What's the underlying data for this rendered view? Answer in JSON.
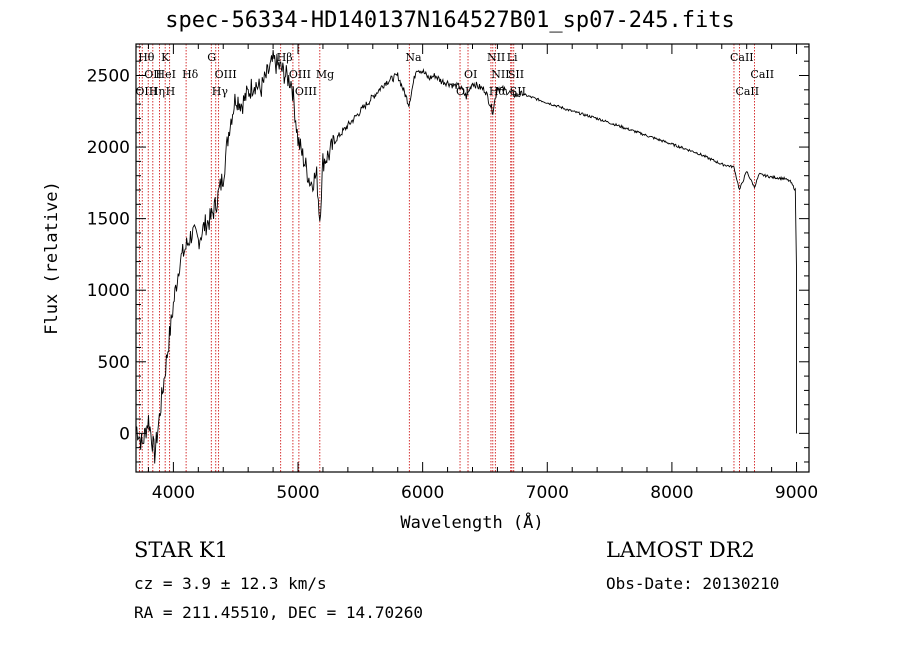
{
  "title": "spec-56334-HD140137N164527B01_sp07-245.fits",
  "info": {
    "class_label": "STAR    K1",
    "cz": "cz = 3.9 ± 12.3 km/s",
    "radec": "RA = 211.45510, DEC =  14.70260",
    "survey": "LAMOST DR2",
    "obs_date": "Obs-Date: 20130210"
  },
  "colors": {
    "line_marker": "#cc0000",
    "spectrum": "#000000",
    "axes": "#000000"
  },
  "chart_data": {
    "type": "line",
    "xlabel": "Wavelength (Å)",
    "ylabel": "Flux (relative)",
    "xlim": [
      3700,
      9100
    ],
    "ylim": [
      -270,
      2720
    ],
    "xticks": [
      4000,
      5000,
      6000,
      7000,
      8000,
      9000
    ],
    "yticks": [
      0,
      500,
      1000,
      1500,
      2000,
      2500
    ],
    "grid": false,
    "series": [
      {
        "values_x": [
          3700,
          3750,
          3800,
          3850,
          3900,
          3950,
          4000,
          4050,
          4100,
          4150,
          4200,
          4250,
          4300,
          4340,
          4400,
          4450,
          4500,
          4550,
          4600,
          4650,
          4700,
          4750,
          4800,
          4861,
          4900,
          4950,
          5000,
          5050,
          5100,
          5150,
          5175,
          5200,
          5250,
          5300,
          5400,
          5500,
          5600,
          5700,
          5800,
          5890,
          5950,
          6000,
          6050,
          6100,
          6150,
          6200,
          6250,
          6300,
          6350,
          6400,
          6450,
          6500,
          6563,
          6600,
          6650,
          6700,
          6750,
          6800,
          7000,
          7200,
          7400,
          7600,
          7800,
          8000,
          8200,
          8400,
          8498,
          8542,
          8600,
          8662,
          8700,
          8800,
          8900,
          8950,
          8990,
          9000
        ],
        "values_y": [
          50,
          -80,
          100,
          -150,
          200,
          550,
          900,
          1200,
          1300,
          1400,
          1350,
          1450,
          1500,
          1600,
          1800,
          2150,
          2350,
          2300,
          2380,
          2450,
          2400,
          2500,
          2600,
          2550,
          2500,
          2450,
          2050,
          1900,
          1750,
          1800,
          1500,
          1900,
          1950,
          2050,
          2150,
          2250,
          2350,
          2450,
          2500,
          2300,
          2550,
          2530,
          2480,
          2500,
          2460,
          2450,
          2430,
          2420,
          2350,
          2450,
          2420,
          2400,
          2250,
          2420,
          2400,
          2380,
          2360,
          2370,
          2310,
          2250,
          2200,
          2140,
          2080,
          2020,
          1960,
          1880,
          1860,
          1700,
          1830,
          1720,
          1810,
          1790,
          1780,
          1760,
          1700,
          1150
        ]
      }
    ],
    "lines": [
      {
        "wl": 3750,
        "label": "Hθ",
        "row": 1
      },
      {
        "wl": 3798,
        "label": "OII",
        "row": 2
      },
      {
        "wl": 3727,
        "label": "OIII",
        "row": 3
      },
      {
        "wl": 3835,
        "label": "Hη",
        "row": 3
      },
      {
        "wl": 3889,
        "label": "HeI",
        "row": 2
      },
      {
        "wl": 3934,
        "label": "K",
        "row": 1
      },
      {
        "wl": 3970,
        "label": "H",
        "row": 3
      },
      {
        "wl": 4102,
        "label": "Hδ",
        "row": 2
      },
      {
        "wl": 4304,
        "label": "G",
        "row": 1
      },
      {
        "wl": 4340,
        "label": "Hγ",
        "row": 3
      },
      {
        "wl": 4363,
        "label": "OIII",
        "row": 2
      },
      {
        "wl": 4861,
        "label": "Hβ",
        "row": 1
      },
      {
        "wl": 4959,
        "label": "OIII",
        "row": 2
      },
      {
        "wl": 5007,
        "label": "OIII",
        "row": 3
      },
      {
        "wl": 5175,
        "label": "Mg",
        "row": 2
      },
      {
        "wl": 5893,
        "label": "Na",
        "row": 1
      },
      {
        "wl": 6300,
        "label": "OI",
        "row": 3
      },
      {
        "wl": 6364,
        "label": "OI",
        "row": 2
      },
      {
        "wl": 6548,
        "label": "NII",
        "row": 1
      },
      {
        "wl": 6563,
        "label": "Hα",
        "row": 3
      },
      {
        "wl": 6583,
        "label": "NII",
        "row": 2
      },
      {
        "wl": 6707,
        "label": "Li",
        "row": 1
      },
      {
        "wl": 6716,
        "label": "SII",
        "row": 2
      },
      {
        "wl": 6731,
        "label": "SII",
        "row": 3
      },
      {
        "wl": 8498,
        "label": "CaII",
        "row": 1
      },
      {
        "wl": 8542,
        "label": "CaII",
        "row": 3
      },
      {
        "wl": 8662,
        "label": "CaII",
        "row": 2
      }
    ]
  }
}
